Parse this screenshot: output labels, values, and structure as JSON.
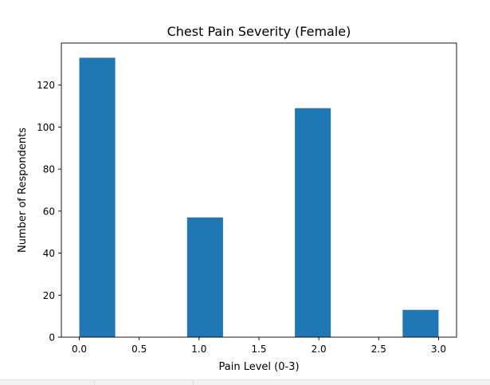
{
  "chart_data": {
    "type": "bar",
    "title": "Chest Pain Severity (Female)",
    "xlabel": "Pain Level (0-3)",
    "ylabel": "Number of Respondents",
    "bins": [
      {
        "start": 0.0,
        "end": 0.3,
        "value": 133
      },
      {
        "start": 0.3,
        "end": 0.6,
        "value": 0
      },
      {
        "start": 0.6,
        "end": 0.9,
        "value": 0
      },
      {
        "start": 0.9,
        "end": 1.2,
        "value": 57
      },
      {
        "start": 1.2,
        "end": 1.5,
        "value": 0
      },
      {
        "start": 1.5,
        "end": 1.8,
        "value": 0
      },
      {
        "start": 1.8,
        "end": 2.1,
        "value": 109
      },
      {
        "start": 2.1,
        "end": 2.4,
        "value": 0
      },
      {
        "start": 2.4,
        "end": 2.7,
        "value": 0
      },
      {
        "start": 2.7,
        "end": 3.0,
        "value": 13
      }
    ],
    "xlim": [
      -0.15,
      3.15
    ],
    "ylim": [
      0,
      140
    ],
    "xticks": [
      0.0,
      0.5,
      1.0,
      1.5,
      2.0,
      2.5,
      3.0
    ],
    "xtick_labels": [
      "0.0",
      "0.5",
      "1.0",
      "1.5",
      "2.0",
      "2.5",
      "3.0"
    ],
    "yticks": [
      0,
      20,
      40,
      60,
      80,
      100,
      120
    ],
    "ytick_labels": [
      "0",
      "20",
      "40",
      "60",
      "80",
      "100",
      "120"
    ],
    "grid": false,
    "bar_color": "#1f77b4"
  }
}
